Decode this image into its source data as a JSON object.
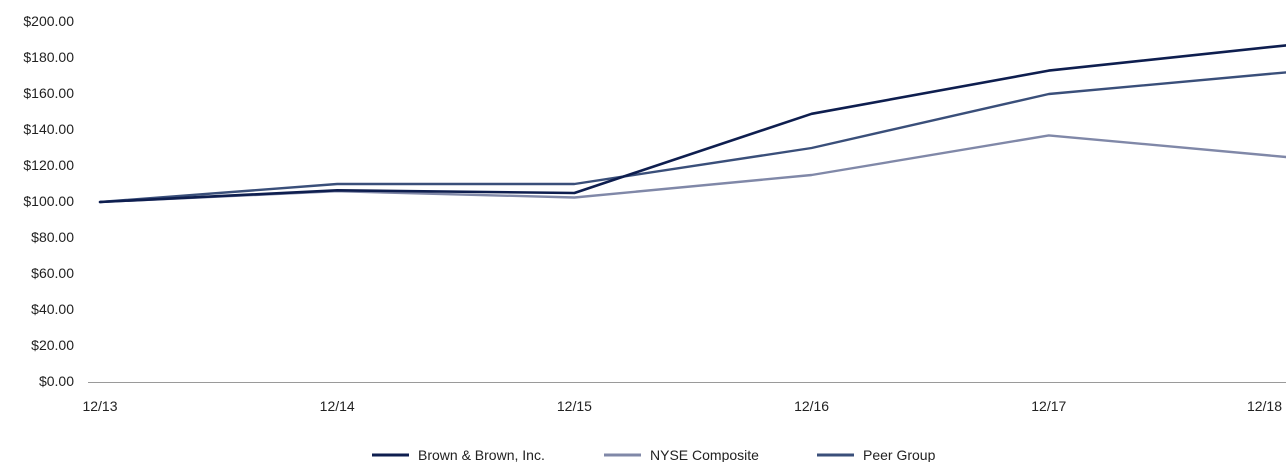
{
  "chart_data": {
    "type": "line",
    "title": "",
    "xlabel": "",
    "ylabel": "",
    "categories": [
      "12/13",
      "12/14",
      "12/15",
      "12/16",
      "12/17",
      "12/18"
    ],
    "ylim": [
      0,
      200
    ],
    "yticks": [
      0,
      20,
      40,
      60,
      80,
      100,
      120,
      140,
      160,
      180,
      200
    ],
    "ytick_labels": [
      "$0.00",
      "$20.00",
      "$40.00",
      "$60.00",
      "$80.00",
      "$100.00",
      "$120.00",
      "$140.00",
      "$160.00",
      "$180.00",
      "$200.00"
    ],
    "grid": false,
    "legend_position": "bottom-center",
    "series": [
      {
        "name": "Brown & Brown, Inc.",
        "color": "#0e1e4f",
        "values": [
          100,
          106.5,
          105,
          149,
          173,
          187
        ]
      },
      {
        "name": "NYSE Composite",
        "color": "#8088a8",
        "values": [
          100,
          106,
          102.5,
          115,
          137,
          125
        ]
      },
      {
        "name": "Peer Group",
        "color": "#3a4f7a",
        "values": [
          100,
          110,
          110,
          130,
          160,
          172
        ]
      }
    ]
  }
}
